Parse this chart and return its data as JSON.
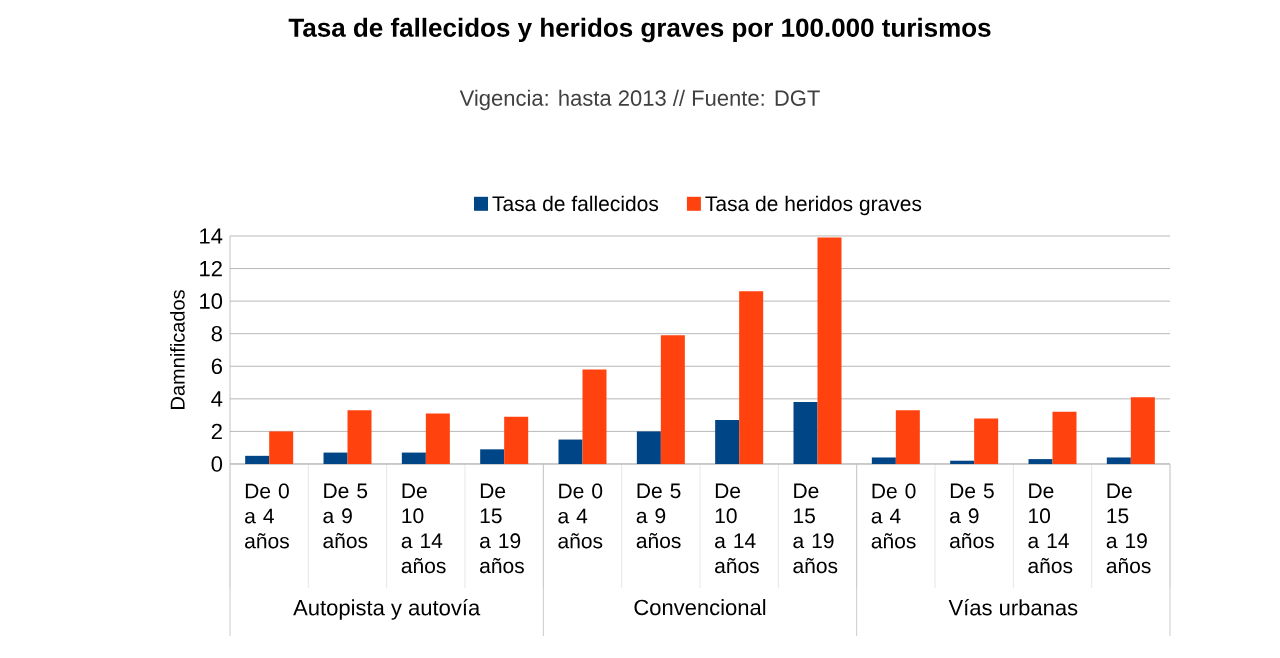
{
  "chart_data": {
    "type": "bar",
    "title": "Tasa de fallecidos y heridos graves por 100.000 turismos",
    "subtitle": "Vigencia: hasta 2013 // Fuente: DGT",
    "ylabel": "Damnificados",
    "categories": [
      "De 0 a 4 años",
      "De 5 a 9 años",
      "De 10 a 14 años",
      "De 15 a 19 años",
      "De 0 a 4 años",
      "De 5 a 9 años",
      "De 10 a 14 años",
      "De 15 a 19 años",
      "De 0 a 4 años",
      "De 5 a 9 años",
      "De 10 a 14 años",
      "De 15 a 19 años"
    ],
    "series": [
      {
        "name": "Tasa de fallecidos",
        "color": "#004586",
        "values": [
          0.5,
          0.7,
          0.7,
          0.9,
          1.5,
          2.0,
          2.7,
          3.8,
          0.4,
          0.2,
          0.3,
          0.4
        ]
      },
      {
        "name": "Tasa de heridos graves",
        "color": "#ff420e",
        "values": [
          2.0,
          3.3,
          3.1,
          2.9,
          5.8,
          7.9,
          10.6,
          13.9,
          3.3,
          2.8,
          3.2,
          4.1
        ]
      }
    ],
    "annotations": [
      "Autopista y autovía",
      "Convencional",
      "Vías urbanas"
    ],
    "ylim": [
      0,
      14
    ],
    "yticks": [
      0,
      2,
      4,
      6,
      8,
      10,
      12,
      14
    ],
    "grid": "y",
    "legend": "top"
  }
}
